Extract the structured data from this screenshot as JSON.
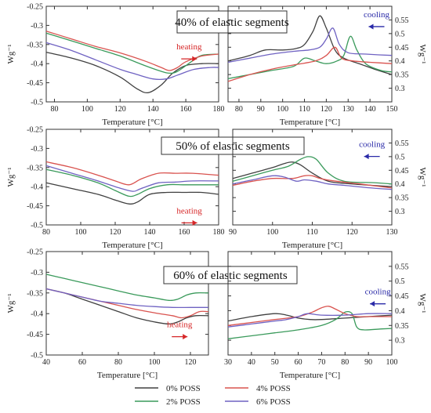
{
  "chart_data": [
    {
      "type": "line",
      "row": 0,
      "side": "left",
      "title": "40% of elastic segments",
      "xlabel": "Temperature [°C]",
      "ylabel": "Wg⁻¹",
      "xlim": [
        75,
        180
      ],
      "ylim": [
        -0.5,
        -0.25
      ],
      "xticks": [
        80,
        100,
        120,
        140,
        160,
        180
      ],
      "yticks": [
        -0.5,
        -0.45,
        -0.4,
        -0.35,
        -0.3,
        -0.25
      ],
      "annotation": {
        "text": "heating",
        "color": "#d62728",
        "arrow": "right",
        "at": [
          162,
          -0.363
        ]
      },
      "series": [
        {
          "name": "0% POSS",
          "color": "#404040",
          "x": [
            75,
            90,
            105,
            120,
            130,
            137,
            145,
            152,
            160,
            170,
            180
          ],
          "y": [
            -0.37,
            -0.385,
            -0.405,
            -0.435,
            -0.465,
            -0.476,
            -0.456,
            -0.425,
            -0.405,
            -0.4,
            -0.4
          ]
        },
        {
          "name": "2% POSS",
          "color": "#3a9a5b",
          "x": [
            75,
            90,
            105,
            120,
            135,
            145,
            150,
            155,
            165,
            170,
            180
          ],
          "y": [
            -0.32,
            -0.34,
            -0.36,
            -0.38,
            -0.405,
            -0.42,
            -0.425,
            -0.42,
            -0.39,
            -0.378,
            -0.375
          ]
        },
        {
          "name": "4% POSS",
          "color": "#d9534f",
          "x": [
            75,
            90,
            105,
            120,
            135,
            145,
            150,
            155,
            160,
            170,
            180
          ],
          "y": [
            -0.315,
            -0.335,
            -0.355,
            -0.372,
            -0.393,
            -0.41,
            -0.418,
            -0.41,
            -0.395,
            -0.38,
            -0.375
          ]
        },
        {
          "name": "6% POSS",
          "color": "#6f62c2",
          "x": [
            75,
            90,
            105,
            120,
            130,
            140,
            148,
            155,
            165,
            175,
            180
          ],
          "y": [
            -0.345,
            -0.365,
            -0.39,
            -0.415,
            -0.428,
            -0.44,
            -0.44,
            -0.43,
            -0.415,
            -0.41,
            -0.41
          ]
        }
      ]
    },
    {
      "type": "line",
      "row": 0,
      "side": "right",
      "xlabel": "Temperature [°C]",
      "ylabel": "Wg⁻¹",
      "xlim": [
        75,
        150
      ],
      "ylim": [
        0.25,
        0.6
      ],
      "xticks": [
        80,
        90,
        100,
        110,
        120,
        130,
        140,
        150
      ],
      "yticks": [
        0.3,
        0.35,
        0.4,
        0.45,
        0.5,
        0.55
      ],
      "annotation": {
        "text": "cooling",
        "color": "#2a2aa8",
        "arrow": "left",
        "at": [
          143,
          0.56
        ]
      },
      "series": [
        {
          "name": "0% POSS",
          "color": "#404040",
          "x": [
            75,
            85,
            92,
            100,
            106,
            110,
            114,
            117,
            120,
            124,
            128,
            135,
            142,
            150
          ],
          "y": [
            0.4,
            0.42,
            0.44,
            0.44,
            0.445,
            0.46,
            0.51,
            0.565,
            0.52,
            0.44,
            0.41,
            0.39,
            0.37,
            0.35
          ]
        },
        {
          "name": "2% POSS",
          "color": "#3a9a5b",
          "x": [
            75,
            85,
            95,
            105,
            110,
            115,
            120,
            125,
            128,
            131,
            134,
            138,
            145,
            150
          ],
          "y": [
            0.335,
            0.35,
            0.365,
            0.38,
            0.41,
            0.4,
            0.39,
            0.4,
            0.42,
            0.49,
            0.44,
            0.39,
            0.365,
            0.36
          ]
        },
        {
          "name": "4% POSS",
          "color": "#d9534f",
          "x": [
            75,
            85,
            95,
            105,
            115,
            120,
            124,
            127,
            132,
            140,
            150
          ],
          "y": [
            0.325,
            0.35,
            0.37,
            0.385,
            0.4,
            0.42,
            0.45,
            0.41,
            0.4,
            0.395,
            0.39
          ]
        },
        {
          "name": "6% POSS",
          "color": "#6f62c2",
          "x": [
            75,
            85,
            95,
            105,
            112,
            117,
            120,
            123,
            126,
            130,
            138,
            150
          ],
          "y": [
            0.395,
            0.41,
            0.425,
            0.435,
            0.44,
            0.45,
            0.48,
            0.52,
            0.46,
            0.43,
            0.425,
            0.42
          ]
        }
      ]
    },
    {
      "type": "line",
      "row": 1,
      "side": "left",
      "title": "50% of elastic segments",
      "xlabel": "Temperature [°C]",
      "ylabel": "Wg⁻¹",
      "xlim": [
        80,
        180
      ],
      "ylim": [
        -0.5,
        -0.25
      ],
      "xticks": [
        80,
        100,
        120,
        140,
        160,
        180
      ],
      "yticks": [
        -0.5,
        -0.45,
        -0.4,
        -0.35,
        -0.3,
        -0.25
      ],
      "annotation": {
        "text": "heating",
        "color": "#d62728",
        "arrow": "right",
        "at": [
          163,
          -0.47
        ]
      },
      "series": [
        {
          "name": "0% POSS",
          "color": "#404040",
          "x": [
            80,
            95,
            110,
            120,
            128,
            133,
            140,
            150,
            160,
            170,
            180
          ],
          "y": [
            -0.39,
            -0.405,
            -0.42,
            -0.435,
            -0.445,
            -0.44,
            -0.42,
            -0.415,
            -0.415,
            -0.415,
            -0.42
          ]
        },
        {
          "name": "2% POSS",
          "color": "#3a9a5b",
          "x": [
            80,
            95,
            110,
            120,
            128,
            133,
            140,
            150,
            160,
            170,
            180
          ],
          "y": [
            -0.355,
            -0.37,
            -0.39,
            -0.41,
            -0.425,
            -0.42,
            -0.405,
            -0.395,
            -0.395,
            -0.395,
            -0.395
          ]
        },
        {
          "name": "4% POSS",
          "color": "#d9534f",
          "x": [
            80,
            95,
            110,
            120,
            128,
            135,
            145,
            155,
            165,
            180
          ],
          "y": [
            -0.335,
            -0.35,
            -0.37,
            -0.385,
            -0.395,
            -0.38,
            -0.365,
            -0.365,
            -0.365,
            -0.37
          ]
        },
        {
          "name": "6% POSS",
          "color": "#6f62c2",
          "x": [
            80,
            95,
            110,
            120,
            130,
            135,
            145,
            155,
            165,
            180
          ],
          "y": [
            -0.345,
            -0.365,
            -0.385,
            -0.4,
            -0.412,
            -0.405,
            -0.39,
            -0.388,
            -0.385,
            -0.385
          ]
        }
      ]
    },
    {
      "type": "line",
      "row": 1,
      "side": "right",
      "xlabel": "Temperature [°C]",
      "ylabel": "Wg⁻¹",
      "xlim": [
        90,
        130
      ],
      "ylim": [
        0.25,
        0.6
      ],
      "xticks": [
        90,
        100,
        110,
        120,
        130
      ],
      "yticks": [
        0.3,
        0.35,
        0.4,
        0.45,
        0.5,
        0.55
      ],
      "annotation": {
        "text": "cooling",
        "color": "#2a2aa8",
        "arrow": "left",
        "at": [
          125,
          0.535
        ]
      },
      "series": [
        {
          "name": "0% POSS",
          "color": "#404040",
          "x": [
            90,
            95,
            100,
            103,
            105,
            107,
            110,
            114,
            120,
            125,
            130
          ],
          "y": [
            0.42,
            0.44,
            0.46,
            0.475,
            0.48,
            0.47,
            0.44,
            0.41,
            0.4,
            0.395,
            0.39
          ]
        },
        {
          "name": "2% POSS",
          "color": "#3a9a5b",
          "x": [
            90,
            95,
            100,
            104,
            107,
            109,
            111,
            114,
            118,
            125,
            130
          ],
          "y": [
            0.41,
            0.43,
            0.45,
            0.465,
            0.49,
            0.5,
            0.49,
            0.44,
            0.41,
            0.405,
            0.4
          ]
        },
        {
          "name": "4% POSS",
          "color": "#d9534f",
          "x": [
            90,
            95,
            100,
            105,
            108,
            110,
            112,
            116,
            122,
            130
          ],
          "y": [
            0.395,
            0.41,
            0.42,
            0.42,
            0.43,
            0.43,
            0.42,
            0.41,
            0.4,
            0.385
          ]
        },
        {
          "name": "6% POSS",
          "color": "#6f62c2",
          "x": [
            90,
            95,
            100,
            103,
            106,
            108,
            111,
            114,
            118,
            125,
            130
          ],
          "y": [
            0.4,
            0.415,
            0.43,
            0.425,
            0.41,
            0.415,
            0.41,
            0.4,
            0.395,
            0.385,
            0.38
          ]
        }
      ]
    },
    {
      "type": "line",
      "row": 2,
      "side": "left",
      "title": "60% of elastic segments",
      "xlabel": "Temperature [°C]",
      "ylabel": "Wg⁻¹",
      "xlim": [
        40,
        130
      ],
      "ylim": [
        -0.5,
        -0.25
      ],
      "xticks": [
        40,
        60,
        80,
        100,
        120
      ],
      "yticks": [
        -0.5,
        -0.45,
        -0.4,
        -0.35,
        -0.3,
        -0.25
      ],
      "annotation": {
        "text": "heating",
        "color": "#d62728",
        "arrow": "right",
        "at": [
          114,
          -0.433
        ]
      },
      "series": [
        {
          "name": "0% POSS",
          "color": "#404040",
          "x": [
            40,
            50,
            60,
            70,
            80,
            90,
            100,
            108,
            113,
            118,
            123,
            130
          ],
          "y": [
            -0.34,
            -0.35,
            -0.365,
            -0.38,
            -0.395,
            -0.41,
            -0.42,
            -0.425,
            -0.42,
            -0.41,
            -0.405,
            -0.405
          ]
        },
        {
          "name": "2% POSS",
          "color": "#3a9a5b",
          "x": [
            40,
            50,
            60,
            70,
            80,
            90,
            100,
            108,
            113,
            118,
            123,
            130
          ],
          "y": [
            -0.305,
            -0.315,
            -0.325,
            -0.335,
            -0.345,
            -0.355,
            -0.362,
            -0.368,
            -0.365,
            -0.355,
            -0.35,
            -0.35
          ]
        },
        {
          "name": "4% POSS",
          "color": "#d9534f",
          "x": [
            40,
            50,
            60,
            70,
            80,
            90,
            100,
            110,
            115,
            120,
            125,
            130
          ],
          "y": [
            -0.34,
            -0.35,
            -0.36,
            -0.37,
            -0.38,
            -0.39,
            -0.398,
            -0.405,
            -0.41,
            -0.405,
            -0.395,
            -0.395
          ]
        },
        {
          "name": "6% POSS",
          "color": "#6f62c2",
          "x": [
            40,
            50,
            60,
            70,
            80,
            90,
            100,
            110,
            120,
            130
          ],
          "y": [
            -0.34,
            -0.35,
            -0.36,
            -0.37,
            -0.375,
            -0.38,
            -0.383,
            -0.385,
            -0.385,
            -0.385
          ]
        }
      ]
    },
    {
      "type": "line",
      "row": 2,
      "side": "right",
      "xlabel": "Temperature [°C]",
      "ylabel": "Wg⁻¹",
      "xlim": [
        30,
        100
      ],
      "ylim": [
        0.25,
        0.6
      ],
      "xticks": [
        30,
        40,
        50,
        60,
        70,
        80,
        90,
        100
      ],
      "yticks": [
        0.3,
        0.35,
        0.4,
        0.45,
        0.5,
        0.55
      ],
      "annotation": {
        "text": "cooling",
        "color": "#2a2aa8",
        "arrow": "left",
        "at": [
          94,
          0.455
        ]
      },
      "series": [
        {
          "name": "0% POSS",
          "color": "#404040",
          "x": [
            30,
            40,
            50,
            55,
            60,
            65,
            70,
            80,
            90,
            100
          ],
          "y": [
            0.365,
            0.38,
            0.39,
            0.385,
            0.375,
            0.37,
            0.37,
            0.375,
            0.38,
            0.385
          ]
        },
        {
          "name": "2% POSS",
          "color": "#3a9a5b",
          "x": [
            30,
            40,
            50,
            60,
            70,
            76,
            80,
            83,
            85,
            88,
            95,
            100
          ],
          "y": [
            0.305,
            0.315,
            0.325,
            0.335,
            0.35,
            0.37,
            0.395,
            0.39,
            0.345,
            0.335,
            0.338,
            0.34
          ]
        },
        {
          "name": "4% POSS",
          "color": "#d9534f",
          "x": [
            30,
            40,
            50,
            60,
            66,
            70,
            73,
            76,
            80,
            85,
            90,
            100
          ],
          "y": [
            0.35,
            0.36,
            0.37,
            0.38,
            0.395,
            0.41,
            0.415,
            0.405,
            0.39,
            0.38,
            0.38,
            0.38
          ]
        },
        {
          "name": "6% POSS",
          "color": "#6f62c2",
          "x": [
            30,
            40,
            50,
            55,
            60,
            64,
            70,
            80,
            90,
            100
          ],
          "y": [
            0.345,
            0.355,
            0.365,
            0.37,
            0.38,
            0.39,
            0.385,
            0.385,
            0.39,
            0.39
          ]
        }
      ]
    }
  ],
  "legend": {
    "entries": [
      {
        "label": "0% POSS",
        "color": "#404040"
      },
      {
        "label": "4% POSS",
        "color": "#d9534f"
      },
      {
        "label": "2% POSS",
        "color": "#3a9a5b"
      },
      {
        "label": "6% POSS",
        "color": "#6f62c2"
      }
    ]
  }
}
